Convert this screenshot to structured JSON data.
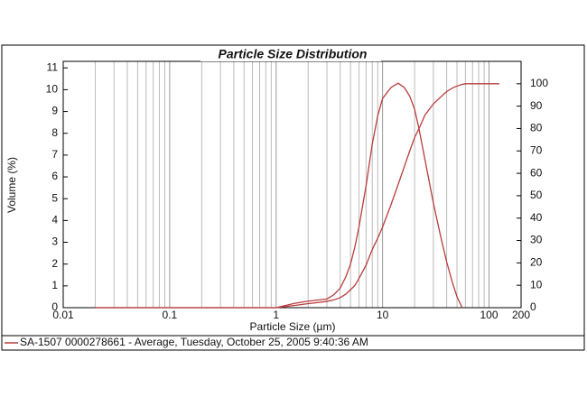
{
  "chart_data": {
    "type": "line",
    "title": "Particle Size Distribution",
    "x_label": "Particle Size (µm)",
    "y_label": "Volume (%)",
    "x_log": true,
    "grid": true,
    "legend": "bottom",
    "x": [
      0.02,
      0.1,
      0.5,
      1,
      1.5,
      2,
      2.5,
      3,
      3.5,
      4,
      4.5,
      5,
      5.5,
      6,
      7,
      8,
      9,
      10,
      12,
      14,
      16,
      18,
      20,
      22,
      25,
      30,
      35,
      40,
      45,
      50,
      56,
      60,
      80,
      100,
      125
    ],
    "series": [
      {
        "name": "SA-1507 0000278661 - Average, Tuesday, October 25, 2005 9:40:36 AM",
        "color": "#b83c3c",
        "values": [
          0,
          0,
          0,
          0,
          0.2,
          0.3,
          0.35,
          0.4,
          0.6,
          0.9,
          1.4,
          2,
          2.8,
          3.7,
          5.6,
          7.5,
          8.8,
          9.6,
          10.1,
          10.3,
          10.1,
          9.7,
          9.1,
          8.2,
          6.8,
          4.8,
          3.3,
          2.1,
          1.2,
          0.5,
          0,
          null,
          null,
          null,
          null
        ]
      },
      {
        "color": "#b83c3c",
        "axis": "y2",
        "values": [
          0,
          0,
          0,
          0,
          1,
          1.8,
          2.3,
          2.8,
          3.5,
          4.5,
          6,
          8,
          10,
          13,
          19,
          26,
          31,
          36,
          46,
          55,
          63,
          70,
          76,
          80,
          86,
          91,
          94,
          96.5,
          98,
          99,
          99.7,
          100,
          100,
          100,
          100
        ]
      }
    ],
    "xlim": [
      0.01,
      200
    ],
    "xticks": [
      0.01,
      0.1,
      1,
      10,
      100,
      200
    ],
    "xminorticks": [
      0.02,
      0.03,
      0.04,
      0.05,
      0.06,
      0.07,
      0.08,
      0.09,
      0.2,
      0.3,
      0.4,
      0.5,
      0.6,
      0.7,
      0.8,
      0.9,
      2,
      3,
      4,
      5,
      6,
      7,
      8,
      9,
      20,
      30,
      40,
      50,
      60,
      70,
      80,
      90
    ],
    "ylim": [
      0,
      11.3
    ],
    "yticks": [
      0,
      1,
      2,
      3,
      4,
      5,
      6,
      7,
      8,
      9,
      10,
      11
    ],
    "y2lim": [
      0,
      110
    ],
    "y2ticks": [
      0,
      10,
      20,
      30,
      40,
      50,
      60,
      70,
      80,
      90,
      100
    ]
  }
}
